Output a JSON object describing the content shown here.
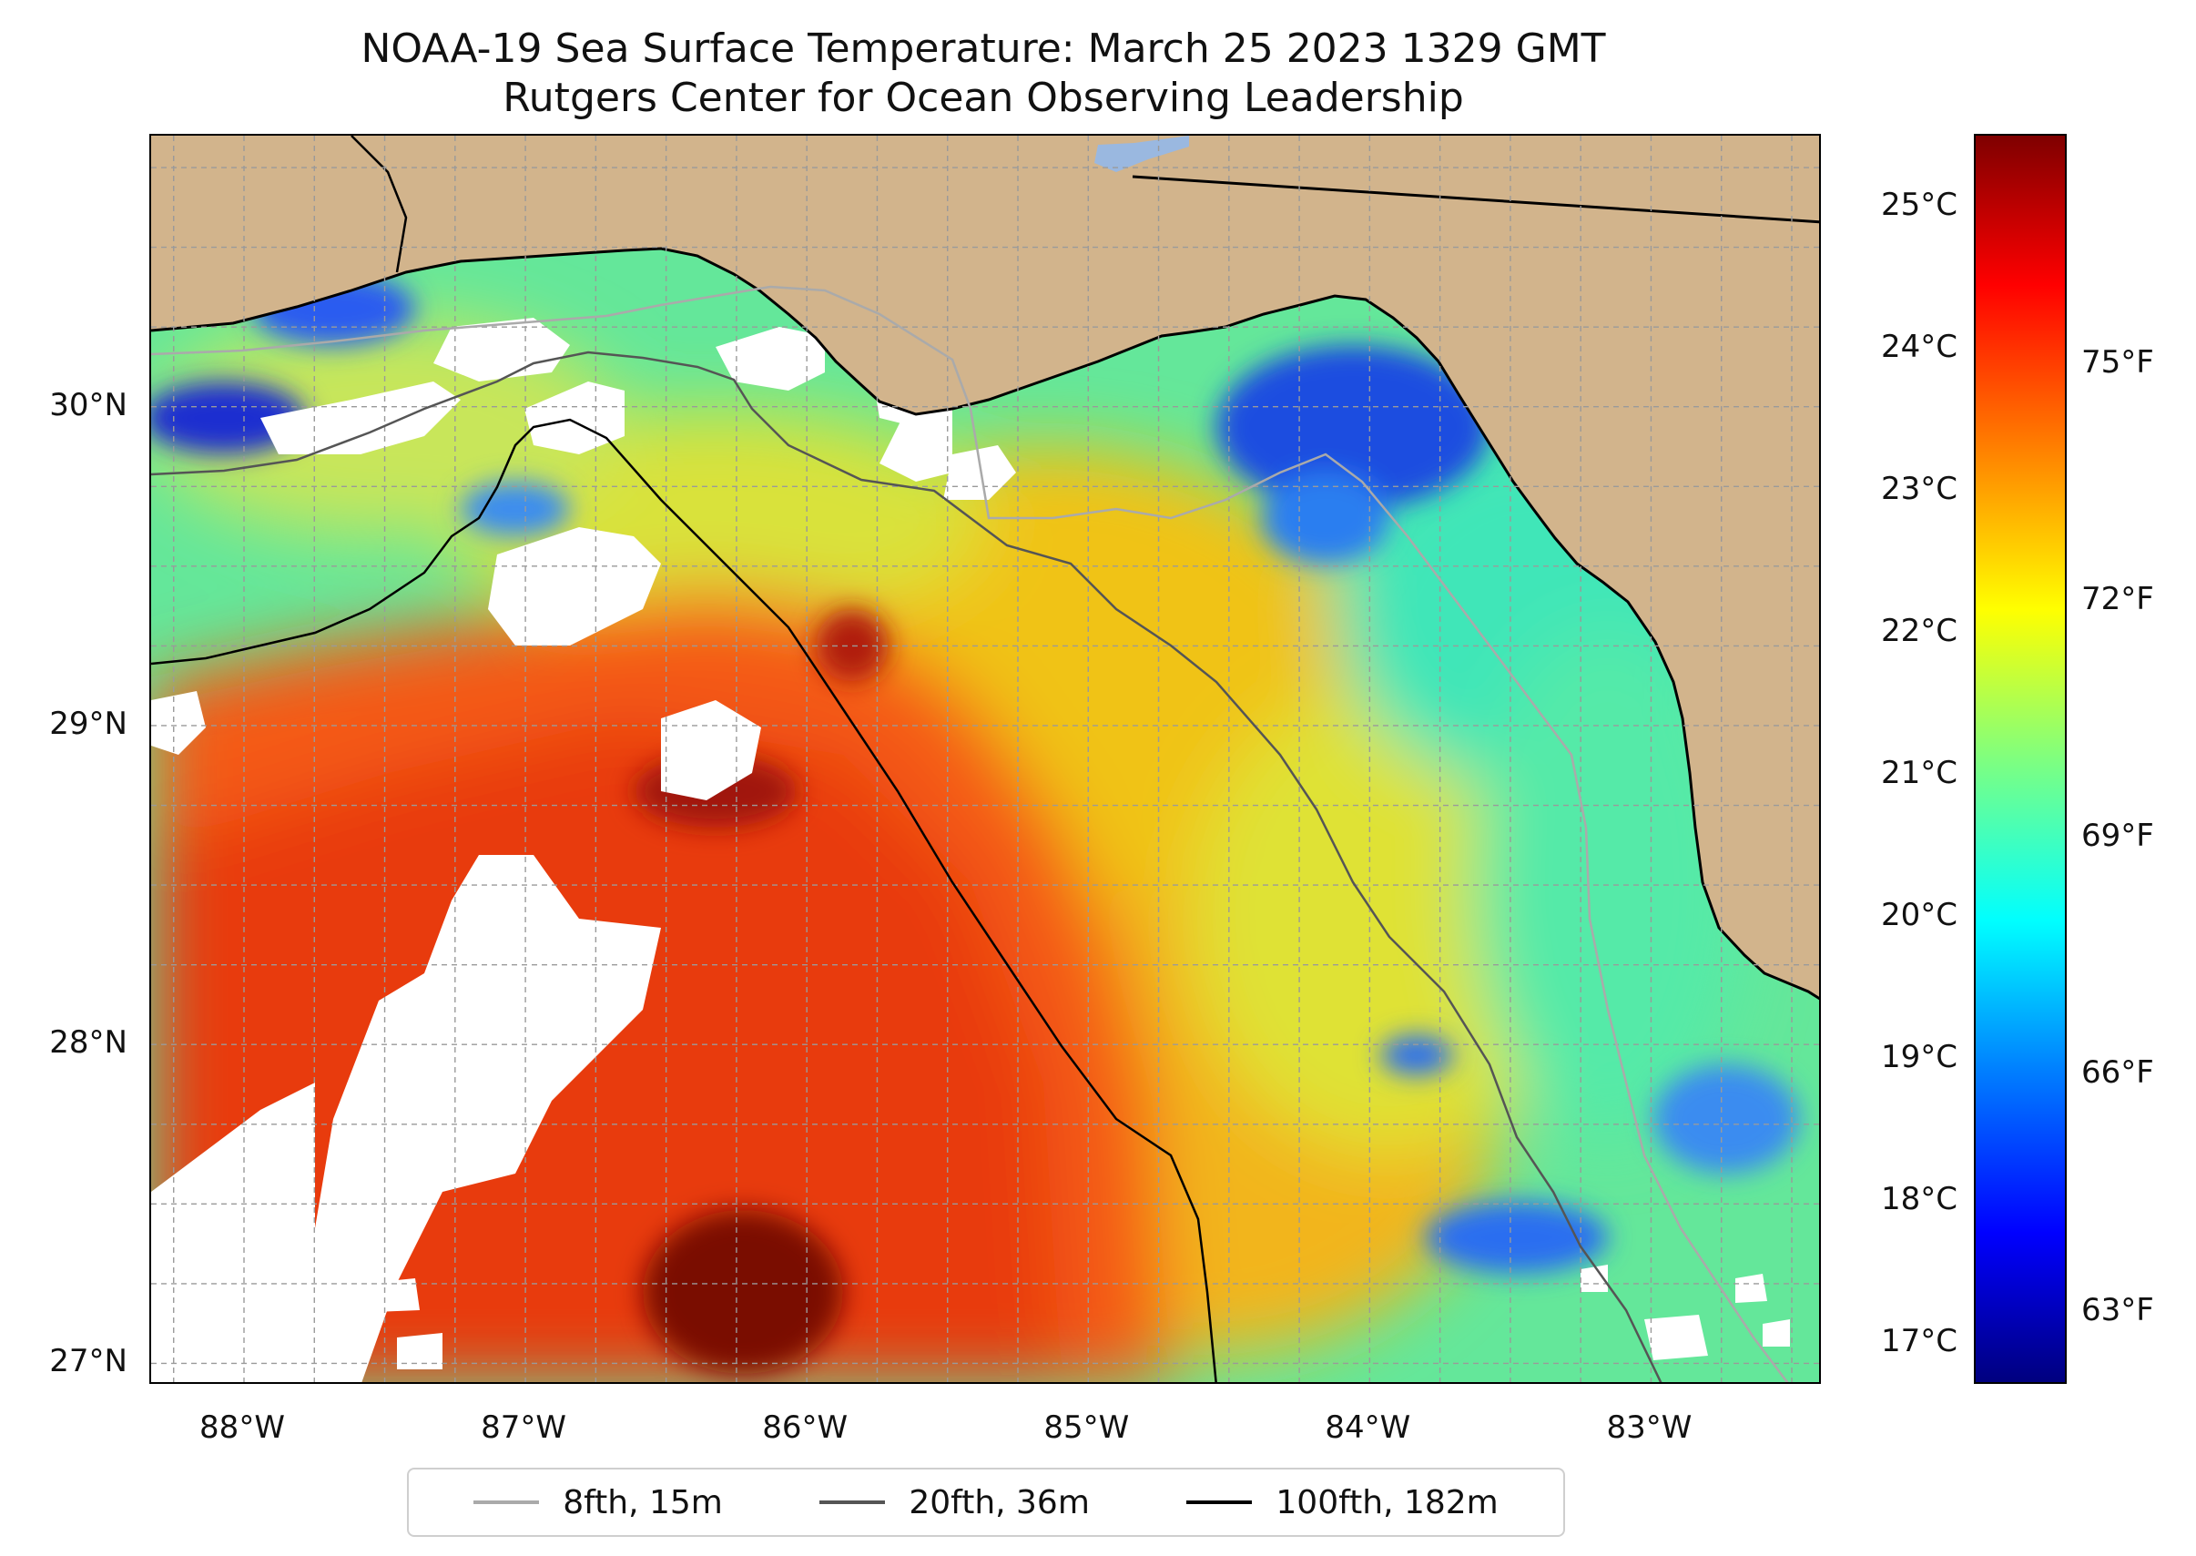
{
  "title": {
    "line1": "NOAA-19 Sea Surface Temperature: March 25 2023 1329 GMT",
    "line2": "Rutgers Center for Ocean Observing Leadership"
  },
  "map": {
    "extent": {
      "lon": [
        -88.33,
        -82.39
      ],
      "lat": [
        26.93,
        30.85
      ]
    },
    "lat_ticks": [
      {
        "label": "30°N",
        "value": 30
      },
      {
        "label": "29°N",
        "value": 29
      },
      {
        "label": "28°N",
        "value": 28
      },
      {
        "label": "27°N",
        "value": 27
      }
    ],
    "lon_ticks": [
      {
        "label": "88°W",
        "value": -88
      },
      {
        "label": "87°W",
        "value": -87
      },
      {
        "label": "86°W",
        "value": -86
      },
      {
        "label": "85°W",
        "value": -85
      },
      {
        "label": "84°W",
        "value": -84
      },
      {
        "label": "83°W",
        "value": -83
      }
    ],
    "grid": "dashed, every 0.25°",
    "colors": {
      "land": "#d2b48c",
      "cloud_mask": "#ffffff",
      "lake": "#9ab8e0"
    }
  },
  "colorbar": {
    "colormap": "jet",
    "range_c": [
      16.7,
      25.5
    ],
    "celsius_labels": [
      {
        "label": "25°C",
        "value": 25
      },
      {
        "label": "24°C",
        "value": 24
      },
      {
        "label": "23°C",
        "value": 23
      },
      {
        "label": "22°C",
        "value": 22
      },
      {
        "label": "21°C",
        "value": 21
      },
      {
        "label": "20°C",
        "value": 20
      },
      {
        "label": "19°C",
        "value": 19
      },
      {
        "label": "18°C",
        "value": 18
      },
      {
        "label": "17°C",
        "value": 17
      }
    ],
    "fahrenheit_labels": [
      {
        "label": "75°F",
        "value": 75
      },
      {
        "label": "72°F",
        "value": 72
      },
      {
        "label": "69°F",
        "value": 69
      },
      {
        "label": "66°F",
        "value": 66
      },
      {
        "label": "63°F",
        "value": 63
      }
    ]
  },
  "legend": {
    "items": [
      {
        "label": "8fth, 15m",
        "color": "#aaaaaa"
      },
      {
        "label": "20fth, 36m",
        "color": "#555555"
      },
      {
        "label": "100fth, 182m",
        "color": "#000000"
      }
    ]
  }
}
